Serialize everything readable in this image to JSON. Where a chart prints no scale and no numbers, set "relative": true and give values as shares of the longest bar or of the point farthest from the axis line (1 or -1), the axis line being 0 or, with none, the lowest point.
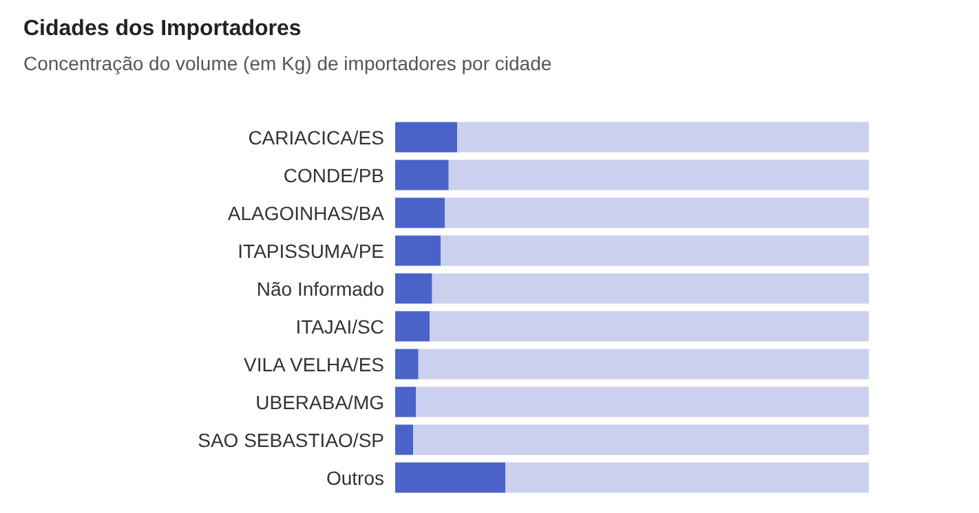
{
  "chart_data": {
    "type": "bar",
    "title": "Cidades dos Importadores",
    "subtitle": "Concentração do volume (em Kg) de importadores por cidade",
    "orientation": "horizontal",
    "stacked": true,
    "relative": true,
    "categories": [
      "CARIACICA/ES",
      "CONDE/PB",
      "ALAGOINHAS/BA",
      "ITAPISSUMA/PE",
      "Não Informado",
      "ITAJAI/SC",
      "VILA VELHA/ES",
      "UBERABA/MG",
      "SAO SEBASTIAO/SP",
      "Outros"
    ],
    "series": [
      {
        "color": "#4a63c8",
        "values": [
          0.131,
          0.113,
          0.105,
          0.096,
          0.078,
          0.073,
          0.049,
          0.044,
          0.038,
          0.233
        ]
      },
      {
        "color": "#cbd0ee",
        "values": [
          0.869,
          0.887,
          0.895,
          0.904,
          0.922,
          0.927,
          0.951,
          0.956,
          0.962,
          0.767
        ]
      }
    ]
  }
}
